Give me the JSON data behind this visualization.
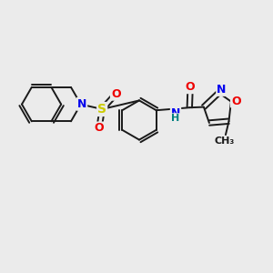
{
  "bg_color": "#ebebeb",
  "bond_color": "#1a1a1a",
  "bond_width": 1.4,
  "atom_colors": {
    "N": "#0000ee",
    "O": "#ee0000",
    "S": "#cccc00",
    "H": "#008080",
    "C": "#1a1a1a"
  },
  "scale": 10,
  "figsize": [
    3.0,
    3.0
  ],
  "dpi": 100
}
